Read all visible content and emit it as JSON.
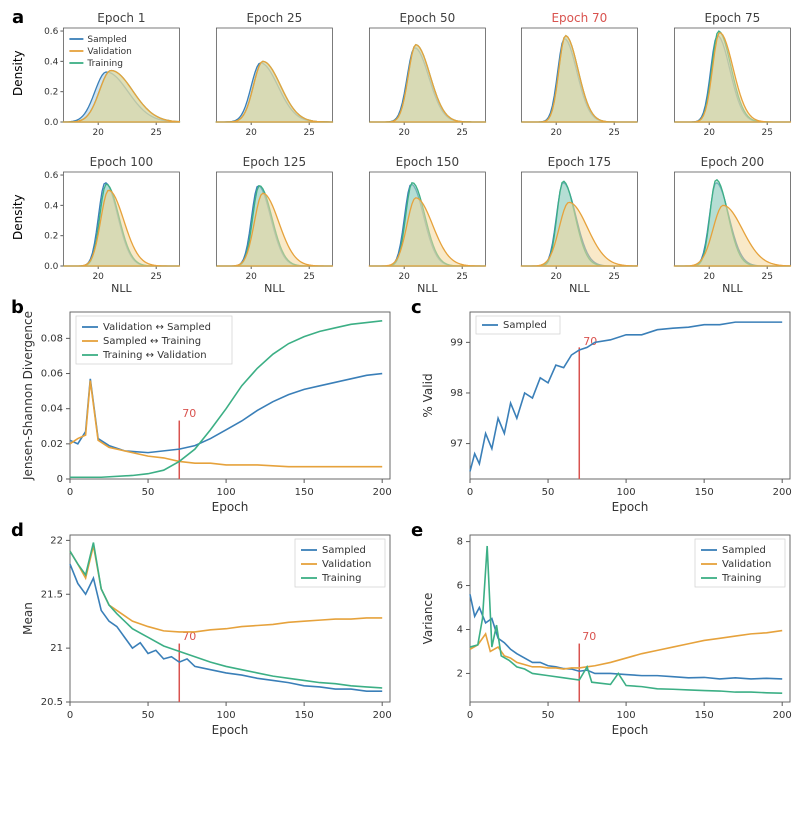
{
  "colors": {
    "sampled": "#3a7fb8",
    "validation": "#e6a23c",
    "training": "#3caf85",
    "marker": "#d9534f",
    "axis": "#5a5a5a",
    "grid": "#e8e8e8",
    "bg": "#ffffff",
    "title_highlight": "#d9534f",
    "title_normal": "#404040",
    "sampled_fill": "#a9cde8",
    "validation_fill": "#f4d79a",
    "training_fill": "#9fd8bc"
  },
  "typography": {
    "title_fontsize": 12,
    "axis_label_fontsize": 12,
    "tick_fontsize": 10,
    "legend_fontsize": 10,
    "panel_label_fontsize": 18
  },
  "panel_labels": {
    "a": "a",
    "b": "b",
    "c": "c",
    "d": "d",
    "e": "e"
  },
  "panel_a": {
    "type": "density-grid",
    "xlabel": "NLL",
    "ylabel": "Density",
    "xlim": [
      17,
      27
    ],
    "xticks": [
      20,
      25
    ],
    "ylim_row1": [
      0,
      0.62
    ],
    "yticks_row1": [
      0.0,
      0.2,
      0.4,
      0.6
    ],
    "ylim_row2": [
      0,
      0.62
    ],
    "yticks_row2": [
      0.0,
      0.2,
      0.4,
      0.6
    ],
    "legend": [
      "Sampled",
      "Validation",
      "Training"
    ],
    "cells": [
      {
        "title": "Epoch 1",
        "highlight": false,
        "peak_x": {
          "s": 20.7,
          "v": 21.1,
          "t": 21.1
        },
        "peaks": {
          "s": 0.33,
          "v": 0.34,
          "t": 0.34
        },
        "spread": {
          "s": 2.6,
          "v": 2.6,
          "t": 2.6
        }
      },
      {
        "title": "Epoch 25",
        "highlight": false,
        "peak_x": {
          "s": 20.8,
          "v": 21.0,
          "t": 21.0
        },
        "peaks": {
          "s": 0.39,
          "v": 0.4,
          "t": 0.4
        },
        "spread": {
          "s": 2.1,
          "v": 2.1,
          "t": 2.1
        }
      },
      {
        "title": "Epoch 50",
        "highlight": false,
        "peak_x": {
          "s": 20.9,
          "v": 21.0,
          "t": 21.0
        },
        "peaks": {
          "s": 0.49,
          "v": 0.51,
          "t": 0.51
        },
        "spread": {
          "s": 1.7,
          "v": 1.7,
          "t": 1.7
        }
      },
      {
        "title": "Epoch 70",
        "highlight": true,
        "peak_x": {
          "s": 20.7,
          "v": 20.8,
          "t": 20.8
        },
        "peaks": {
          "s": 0.55,
          "v": 0.57,
          "t": 0.57
        },
        "spread": {
          "s": 1.5,
          "v": 1.5,
          "t": 1.5
        }
      },
      {
        "title": "Epoch 75",
        "highlight": false,
        "peak_x": {
          "s": 20.7,
          "v": 20.9,
          "t": 20.8
        },
        "peaks": {
          "s": 0.57,
          "v": 0.59,
          "t": 0.6
        },
        "spread": {
          "s": 1.5,
          "v": 1.6,
          "t": 1.5
        }
      },
      {
        "title": "Epoch 100",
        "highlight": false,
        "peak_x": {
          "s": 20.6,
          "v": 20.9,
          "t": 20.7
        },
        "peaks": {
          "s": 0.55,
          "v": 0.5,
          "t": 0.54
        },
        "spread": {
          "s": 1.5,
          "v": 1.8,
          "t": 1.5
        }
      },
      {
        "title": "Epoch 125",
        "highlight": false,
        "peak_x": {
          "s": 20.6,
          "v": 21.0,
          "t": 20.7
        },
        "peaks": {
          "s": 0.53,
          "v": 0.48,
          "t": 0.53
        },
        "spread": {
          "s": 1.5,
          "v": 1.9,
          "t": 1.5
        }
      },
      {
        "title": "Epoch 150",
        "highlight": false,
        "peak_x": {
          "s": 20.6,
          "v": 21.0,
          "t": 20.7
        },
        "peaks": {
          "s": 0.54,
          "v": 0.45,
          "t": 0.55
        },
        "spread": {
          "s": 1.5,
          "v": 2.0,
          "t": 1.5
        }
      },
      {
        "title": "Epoch 175",
        "highlight": false,
        "peak_x": {
          "s": 20.6,
          "v": 21.1,
          "t": 20.6
        },
        "peaks": {
          "s": 0.55,
          "v": 0.42,
          "t": 0.56
        },
        "spread": {
          "s": 1.5,
          "v": 2.2,
          "t": 1.4
        }
      },
      {
        "title": "Epoch 200",
        "highlight": false,
        "peak_x": {
          "s": 20.6,
          "v": 21.2,
          "t": 20.6
        },
        "peaks": {
          "s": 0.55,
          "v": 0.4,
          "t": 0.57
        },
        "spread": {
          "s": 1.5,
          "v": 2.3,
          "t": 1.4
        }
      }
    ]
  },
  "panel_b": {
    "type": "line",
    "title": "",
    "xlabel": "Epoch",
    "ylabel": "Jensen-Shannon Divergence",
    "xlim": [
      0,
      205
    ],
    "xticks": [
      0,
      50,
      100,
      150,
      200
    ],
    "ylim": [
      0,
      0.095
    ],
    "yticks": [
      0.0,
      0.02,
      0.04,
      0.06,
      0.08
    ],
    "marker_x": 70,
    "marker_label": "70",
    "legend": [
      "Validation ↔ Sampled",
      "Sampled ↔ Training",
      "Training ↔ Validation"
    ],
    "series": {
      "vs": [
        [
          0,
          0.022
        ],
        [
          5,
          0.02
        ],
        [
          10,
          0.027
        ],
        [
          13,
          0.057
        ],
        [
          18,
          0.023
        ],
        [
          25,
          0.019
        ],
        [
          35,
          0.016
        ],
        [
          50,
          0.015
        ],
        [
          60,
          0.016
        ],
        [
          70,
          0.017
        ],
        [
          80,
          0.019
        ],
        [
          90,
          0.023
        ],
        [
          100,
          0.028
        ],
        [
          110,
          0.033
        ],
        [
          120,
          0.039
        ],
        [
          130,
          0.044
        ],
        [
          140,
          0.048
        ],
        [
          150,
          0.051
        ],
        [
          160,
          0.053
        ],
        [
          170,
          0.055
        ],
        [
          180,
          0.057
        ],
        [
          190,
          0.059
        ],
        [
          200,
          0.06
        ]
      ],
      "st": [
        [
          0,
          0.02
        ],
        [
          5,
          0.023
        ],
        [
          10,
          0.025
        ],
        [
          13,
          0.056
        ],
        [
          18,
          0.022
        ],
        [
          25,
          0.018
        ],
        [
          35,
          0.016
        ],
        [
          50,
          0.013
        ],
        [
          60,
          0.012
        ],
        [
          70,
          0.01
        ],
        [
          80,
          0.009
        ],
        [
          90,
          0.009
        ],
        [
          100,
          0.008
        ],
        [
          120,
          0.008
        ],
        [
          140,
          0.007
        ],
        [
          160,
          0.007
        ],
        [
          180,
          0.007
        ],
        [
          200,
          0.007
        ]
      ],
      "tv": [
        [
          0,
          0.001
        ],
        [
          20,
          0.001
        ],
        [
          40,
          0.002
        ],
        [
          50,
          0.003
        ],
        [
          60,
          0.005
        ],
        [
          70,
          0.01
        ],
        [
          80,
          0.017
        ],
        [
          90,
          0.028
        ],
        [
          100,
          0.04
        ],
        [
          110,
          0.053
        ],
        [
          120,
          0.063
        ],
        [
          130,
          0.071
        ],
        [
          140,
          0.077
        ],
        [
          150,
          0.081
        ],
        [
          160,
          0.084
        ],
        [
          170,
          0.086
        ],
        [
          180,
          0.088
        ],
        [
          190,
          0.089
        ],
        [
          200,
          0.09
        ]
      ]
    }
  },
  "panel_c": {
    "type": "line",
    "xlabel": "Epoch",
    "ylabel": "% Valid",
    "xlim": [
      0,
      205
    ],
    "xticks": [
      0,
      50,
      100,
      150,
      200
    ],
    "ylim": [
      96.3,
      99.6
    ],
    "yticks": [
      97,
      98,
      99
    ],
    "marker_x": 70,
    "marker_label": "70",
    "legend": [
      "Sampled"
    ],
    "series": {
      "sampled": [
        [
          0,
          96.45
        ],
        [
          3,
          96.8
        ],
        [
          6,
          96.6
        ],
        [
          10,
          97.2
        ],
        [
          14,
          96.9
        ],
        [
          18,
          97.5
        ],
        [
          22,
          97.2
        ],
        [
          26,
          97.8
        ],
        [
          30,
          97.5
        ],
        [
          35,
          98.0
        ],
        [
          40,
          97.9
        ],
        [
          45,
          98.3
        ],
        [
          50,
          98.2
        ],
        [
          55,
          98.55
        ],
        [
          60,
          98.5
        ],
        [
          65,
          98.75
        ],
        [
          70,
          98.85
        ],
        [
          75,
          98.9
        ],
        [
          80,
          99.0
        ],
        [
          90,
          99.05
        ],
        [
          100,
          99.15
        ],
        [
          110,
          99.15
        ],
        [
          120,
          99.25
        ],
        [
          130,
          99.28
        ],
        [
          140,
          99.3
        ],
        [
          150,
          99.35
        ],
        [
          160,
          99.35
        ],
        [
          170,
          99.4
        ],
        [
          180,
          99.4
        ],
        [
          190,
          99.4
        ],
        [
          200,
          99.4
        ]
      ]
    }
  },
  "panel_d": {
    "type": "line",
    "xlabel": "Epoch",
    "ylabel": "Mean",
    "xlim": [
      0,
      205
    ],
    "xticks": [
      0,
      50,
      100,
      150,
      200
    ],
    "ylim": [
      20.5,
      22.05
    ],
    "yticks": [
      20.5,
      21.0,
      21.5,
      22.0
    ],
    "marker_x": 70,
    "marker_label": "70",
    "legend": [
      "Sampled",
      "Validation",
      "Training"
    ],
    "series": {
      "sampled": [
        [
          0,
          21.78
        ],
        [
          5,
          21.6
        ],
        [
          10,
          21.5
        ],
        [
          15,
          21.65
        ],
        [
          20,
          21.35
        ],
        [
          25,
          21.25
        ],
        [
          30,
          21.2
        ],
        [
          35,
          21.1
        ],
        [
          40,
          21.0
        ],
        [
          45,
          21.05
        ],
        [
          50,
          20.95
        ],
        [
          55,
          20.98
        ],
        [
          60,
          20.9
        ],
        [
          65,
          20.92
        ],
        [
          70,
          20.87
        ],
        [
          75,
          20.9
        ],
        [
          80,
          20.83
        ],
        [
          90,
          20.8
        ],
        [
          100,
          20.77
        ],
        [
          110,
          20.75
        ],
        [
          120,
          20.72
        ],
        [
          130,
          20.7
        ],
        [
          140,
          20.68
        ],
        [
          150,
          20.65
        ],
        [
          160,
          20.64
        ],
        [
          170,
          20.62
        ],
        [
          180,
          20.62
        ],
        [
          190,
          20.6
        ],
        [
          200,
          20.6
        ]
      ],
      "validation": [
        [
          0,
          21.9
        ],
        [
          5,
          21.78
        ],
        [
          10,
          21.65
        ],
        [
          15,
          21.95
        ],
        [
          20,
          21.55
        ],
        [
          25,
          21.4
        ],
        [
          30,
          21.35
        ],
        [
          40,
          21.25
        ],
        [
          50,
          21.2
        ],
        [
          60,
          21.16
        ],
        [
          70,
          21.15
        ],
        [
          80,
          21.15
        ],
        [
          90,
          21.17
        ],
        [
          100,
          21.18
        ],
        [
          110,
          21.2
        ],
        [
          120,
          21.21
        ],
        [
          130,
          21.22
        ],
        [
          140,
          21.24
        ],
        [
          150,
          21.25
        ],
        [
          160,
          21.26
        ],
        [
          170,
          21.27
        ],
        [
          180,
          21.27
        ],
        [
          190,
          21.28
        ],
        [
          200,
          21.28
        ]
      ],
      "training": [
        [
          0,
          21.9
        ],
        [
          5,
          21.78
        ],
        [
          10,
          21.68
        ],
        [
          15,
          21.98
        ],
        [
          20,
          21.55
        ],
        [
          25,
          21.4
        ],
        [
          30,
          21.32
        ],
        [
          40,
          21.18
        ],
        [
          50,
          21.1
        ],
        [
          60,
          21.02
        ],
        [
          70,
          20.97
        ],
        [
          80,
          20.92
        ],
        [
          90,
          20.87
        ],
        [
          100,
          20.83
        ],
        [
          110,
          20.8
        ],
        [
          120,
          20.77
        ],
        [
          130,
          20.74
        ],
        [
          140,
          20.72
        ],
        [
          150,
          20.7
        ],
        [
          160,
          20.68
        ],
        [
          170,
          20.67
        ],
        [
          180,
          20.65
        ],
        [
          190,
          20.64
        ],
        [
          200,
          20.63
        ]
      ]
    }
  },
  "panel_e": {
    "type": "line",
    "xlabel": "Epoch",
    "ylabel": "Variance",
    "xlim": [
      0,
      205
    ],
    "xticks": [
      0,
      50,
      100,
      150,
      200
    ],
    "ylim": [
      0.7,
      8.3
    ],
    "yticks": [
      2,
      4,
      6,
      8
    ],
    "marker_x": 70,
    "marker_label": "70",
    "legend": [
      "Sampled",
      "Validation",
      "Training"
    ],
    "series": {
      "sampled": [
        [
          0,
          5.6
        ],
        [
          3,
          4.6
        ],
        [
          6,
          5.0
        ],
        [
          10,
          4.3
        ],
        [
          14,
          4.5
        ],
        [
          18,
          3.6
        ],
        [
          22,
          3.4
        ],
        [
          26,
          3.1
        ],
        [
          30,
          2.9
        ],
        [
          35,
          2.7
        ],
        [
          40,
          2.5
        ],
        [
          45,
          2.5
        ],
        [
          50,
          2.35
        ],
        [
          55,
          2.3
        ],
        [
          60,
          2.22
        ],
        [
          65,
          2.2
        ],
        [
          70,
          2.1
        ],
        [
          75,
          2.15
        ],
        [
          80,
          2.0
        ],
        [
          90,
          2.0
        ],
        [
          100,
          1.95
        ],
        [
          110,
          1.9
        ],
        [
          120,
          1.9
        ],
        [
          130,
          1.85
        ],
        [
          140,
          1.8
        ],
        [
          150,
          1.82
        ],
        [
          160,
          1.75
        ],
        [
          170,
          1.8
        ],
        [
          180,
          1.75
        ],
        [
          190,
          1.78
        ],
        [
          200,
          1.75
        ]
      ],
      "validation": [
        [
          0,
          3.1
        ],
        [
          5,
          3.3
        ],
        [
          10,
          3.8
        ],
        [
          13,
          3.0
        ],
        [
          18,
          3.2
        ],
        [
          22,
          2.8
        ],
        [
          26,
          2.7
        ],
        [
          30,
          2.5
        ],
        [
          35,
          2.4
        ],
        [
          40,
          2.3
        ],
        [
          45,
          2.3
        ],
        [
          50,
          2.25
        ],
        [
          55,
          2.25
        ],
        [
          60,
          2.2
        ],
        [
          65,
          2.25
        ],
        [
          70,
          2.25
        ],
        [
          75,
          2.3
        ],
        [
          80,
          2.35
        ],
        [
          90,
          2.5
        ],
        [
          100,
          2.7
        ],
        [
          110,
          2.9
        ],
        [
          120,
          3.05
        ],
        [
          130,
          3.2
        ],
        [
          140,
          3.35
        ],
        [
          150,
          3.5
        ],
        [
          160,
          3.6
        ],
        [
          170,
          3.7
        ],
        [
          180,
          3.8
        ],
        [
          190,
          3.85
        ],
        [
          200,
          3.95
        ]
      ],
      "training": [
        [
          0,
          3.2
        ],
        [
          5,
          3.3
        ],
        [
          8,
          4.5
        ],
        [
          11,
          7.8
        ],
        [
          14,
          3.2
        ],
        [
          17,
          4.2
        ],
        [
          20,
          2.8
        ],
        [
          25,
          2.6
        ],
        [
          30,
          2.3
        ],
        [
          35,
          2.2
        ],
        [
          40,
          2.0
        ],
        [
          50,
          1.9
        ],
        [
          60,
          1.8
        ],
        [
          70,
          1.7
        ],
        [
          75,
          2.3
        ],
        [
          78,
          1.6
        ],
        [
          90,
          1.5
        ],
        [
          95,
          2.0
        ],
        [
          100,
          1.45
        ],
        [
          110,
          1.4
        ],
        [
          120,
          1.3
        ],
        [
          130,
          1.28
        ],
        [
          140,
          1.25
        ],
        [
          150,
          1.22
        ],
        [
          160,
          1.2
        ],
        [
          170,
          1.15
        ],
        [
          180,
          1.15
        ],
        [
          190,
          1.12
        ],
        [
          200,
          1.1
        ]
      ]
    }
  }
}
